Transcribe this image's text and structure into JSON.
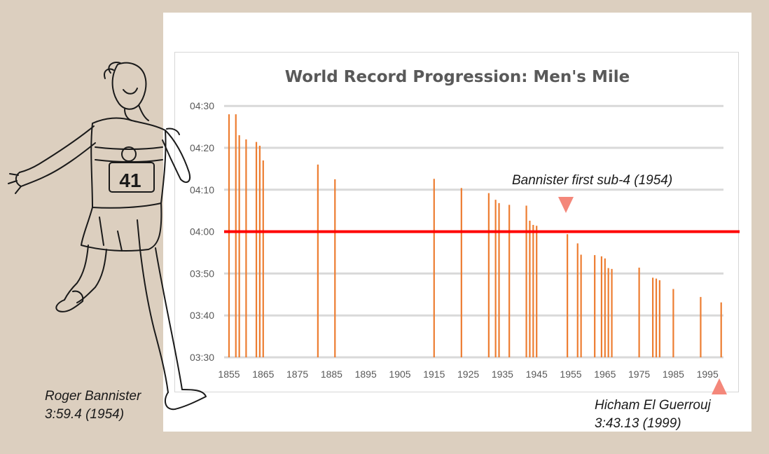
{
  "chart_data": {
    "type": "bar",
    "title": "World Record Progression: Men's Mile",
    "xlabel": "",
    "ylabel": "",
    "y_unit": "minutes:seconds",
    "x_ticks": [
      1855,
      1865,
      1875,
      1885,
      1895,
      1905,
      1915,
      1925,
      1935,
      1945,
      1955,
      1965,
      1975,
      1985,
      1995
    ],
    "y_tick_labels": [
      "03:30",
      "03:40",
      "03:50",
      "04:00",
      "04:10",
      "04:20",
      "04:30"
    ],
    "y_tick_seconds": [
      210,
      220,
      230,
      240,
      250,
      260,
      270
    ],
    "xlim": [
      1855,
      2000
    ],
    "ylim_seconds": [
      210,
      270
    ],
    "grid": "horizontal",
    "legend": "none",
    "bar_color": "#ed7d31",
    "reference_line": {
      "value_seconds": 240,
      "label": "04:00",
      "color": "#ff0000"
    },
    "points": [
      {
        "x": 1855,
        "y": 268.0
      },
      {
        "x": 1857,
        "y": 268.0
      },
      {
        "x": 1858,
        "y": 263.0
      },
      {
        "x": 1860,
        "y": 262.0
      },
      {
        "x": 1863,
        "y": 261.4
      },
      {
        "x": 1864,
        "y": 260.5
      },
      {
        "x": 1865,
        "y": 257.0
      },
      {
        "x": 1881,
        "y": 256.0
      },
      {
        "x": 1886,
        "y": 252.5
      },
      {
        "x": 1915,
        "y": 252.6
      },
      {
        "x": 1923,
        "y": 250.4
      },
      {
        "x": 1931,
        "y": 249.2
      },
      {
        "x": 1933,
        "y": 247.6
      },
      {
        "x": 1934,
        "y": 246.8
      },
      {
        "x": 1937,
        "y": 246.4
      },
      {
        "x": 1942,
        "y": 246.2
      },
      {
        "x": 1943,
        "y": 242.6
      },
      {
        "x": 1944,
        "y": 241.6
      },
      {
        "x": 1945,
        "y": 241.4
      },
      {
        "x": 1954,
        "y": 239.4
      },
      {
        "x": 1957,
        "y": 237.2
      },
      {
        "x": 1958,
        "y": 234.5
      },
      {
        "x": 1962,
        "y": 234.4
      },
      {
        "x": 1964,
        "y": 234.1
      },
      {
        "x": 1965,
        "y": 233.6
      },
      {
        "x": 1966,
        "y": 231.3
      },
      {
        "x": 1967,
        "y": 231.1
      },
      {
        "x": 1975,
        "y": 231.4
      },
      {
        "x": 1979,
        "y": 229.0
      },
      {
        "x": 1980,
        "y": 228.8
      },
      {
        "x": 1981,
        "y": 228.4
      },
      {
        "x": 1985,
        "y": 226.3
      },
      {
        "x": 1993,
        "y": 224.4
      },
      {
        "x": 1999,
        "y": 223.1
      }
    ]
  },
  "annotations": {
    "bannister_first": "Bannister first sub-4 (1954)",
    "roger_name": "Roger Bannister",
    "roger_time": "3:59.4 (1954)",
    "hicham_name": "Hicham El Guerrouj",
    "hicham_time": "3:43.13 (1999)"
  },
  "illustration": {
    "bib_number": "41"
  }
}
